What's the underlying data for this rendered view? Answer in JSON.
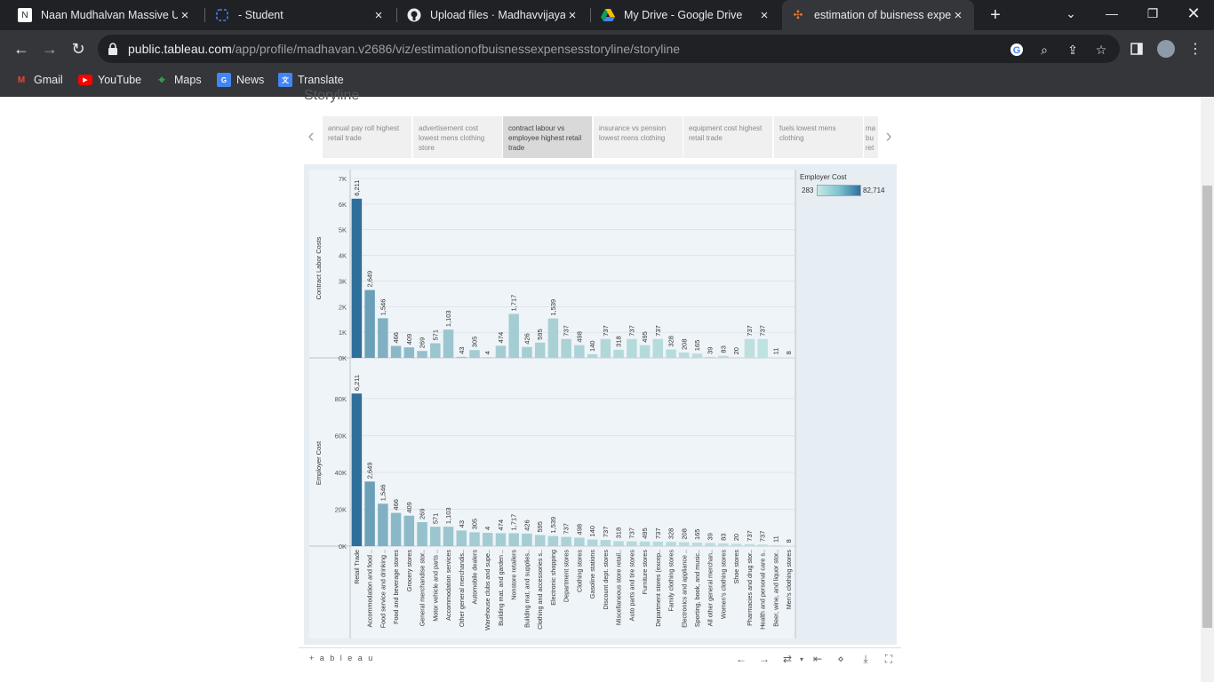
{
  "browser": {
    "tabs": [
      {
        "title": "Naan Mudhalvan Massive Up",
        "icon": "nm-icon",
        "active": false
      },
      {
        "title": "- Student",
        "icon": "student-icon",
        "active": false
      },
      {
        "title": "Upload files · Madhavvijayak",
        "icon": "github-icon",
        "active": false
      },
      {
        "title": "My Drive - Google Drive",
        "icon": "drive-icon",
        "active": false
      },
      {
        "title": "estimation of buisness expe",
        "icon": "tableau-icon",
        "active": true
      }
    ],
    "url_host": "public.tableau.com",
    "url_path": "/app/profile/madhavan.v2686/viz/estimationofbuisnessexpensesstoryline/storyline",
    "bookmarks": [
      {
        "label": "Gmail",
        "icon": "gmail-icon",
        "color": "#ea4335"
      },
      {
        "label": "YouTube",
        "icon": "youtube-icon",
        "color": "#ff0000"
      },
      {
        "label": "Maps",
        "icon": "maps-icon",
        "color": "#34a853"
      },
      {
        "label": "News",
        "icon": "news-icon",
        "color": "#4285f4"
      },
      {
        "label": "Translate",
        "icon": "translate-icon",
        "color": "#4285f4"
      }
    ]
  },
  "story": {
    "title": "Storyline",
    "points": [
      "annual pay roll highest retail trade",
      "advertisement cost lowest mens clothing store",
      "contract labour vs employee highest retail trade",
      "insurance vs pension lowest mens clothing",
      "equipment cost highest retail trade",
      "fuels lowest mens clothing",
      "ma bu ret"
    ],
    "active_index": 2
  },
  "legend": {
    "title": "Employer Cost",
    "min": "283",
    "max": "82,714"
  },
  "footer": {
    "logo": "+ a b l e a u"
  },
  "colors": {
    "dark": "#2f6f9c",
    "light": "#c6e8e3",
    "bg": "#e6eef4"
  },
  "chart_data": {
    "type": "bar",
    "categories": [
      "Retail Trade",
      "Accommodation and food ..",
      "Food service and drinking ..",
      "Food and beverage stores",
      "Grocery stores",
      "General merchandise stor..",
      "Motor vehicle and parts ..",
      "Accommodation services",
      "Other general merchandis..",
      "Automobile dealers",
      "Warehouse clubs and supe..",
      "Building mat. and garden ..",
      "Nonstore retailers",
      "Building mat. and supplies..",
      "Clothing and accessories s..",
      "Electronic shopping",
      "Department stores",
      "Clothing stores",
      "Gasoline stations",
      "Discount dept. stores",
      "Miscellaneous store retail..",
      "Auto parts and tire stores",
      "Furniture stores",
      "Department stores (excep..",
      "Family clothing stores",
      "Electronics and appliance ..",
      "Sporting, book, and music..",
      "All other general merchan..",
      "Women's clothing stores",
      "Shoe stores",
      "Pharmacies and drug stor..",
      "Health and personal care s..",
      "Beer, wine, and liquor stor..",
      "Men's clothing stores"
    ],
    "labels": [
      "6,211",
      "2,649",
      "1,546",
      "466",
      "409",
      "269",
      "571",
      "1,103",
      "43",
      "305",
      "4",
      "474",
      "1,717",
      "426",
      "595",
      "1,539",
      "737",
      "498",
      "140",
      "737",
      "318",
      "737",
      "495",
      "737",
      "328",
      "208",
      "165",
      "39",
      "83",
      "20",
      "737",
      "737",
      "11",
      "8"
    ],
    "series": [
      {
        "name": "Contract Labor Costs",
        "values": [
          6211,
          2649,
          1546,
          466,
          409,
          269,
          571,
          1103,
          43,
          305,
          4,
          474,
          1717,
          426,
          595,
          1539,
          737,
          498,
          140,
          737,
          318,
          737,
          495,
          737,
          328,
          208,
          165,
          39,
          83,
          20,
          737,
          737,
          11,
          8
        ],
        "ylim": [
          0,
          7000
        ],
        "ticks": [
          "0K",
          "1K",
          "2K",
          "3K",
          "4K",
          "5K",
          "6K",
          "7K"
        ]
      },
      {
        "name": "Employer Cost",
        "values": [
          82714,
          35000,
          23000,
          18000,
          16500,
          13000,
          10500,
          10500,
          8500,
          7500,
          7200,
          7000,
          7000,
          6800,
          6000,
          5500,
          5000,
          4600,
          3600,
          3300,
          2700,
          2600,
          2500,
          2400,
          2300,
          2100,
          1900,
          1700,
          1500,
          1300,
          1100,
          900,
          500,
          283
        ],
        "ylim": [
          0,
          90000
        ],
        "ticks": [
          "0K",
          "20K",
          "40K",
          "60K",
          "80K"
        ]
      }
    ],
    "color_legend": "Employer Cost"
  }
}
